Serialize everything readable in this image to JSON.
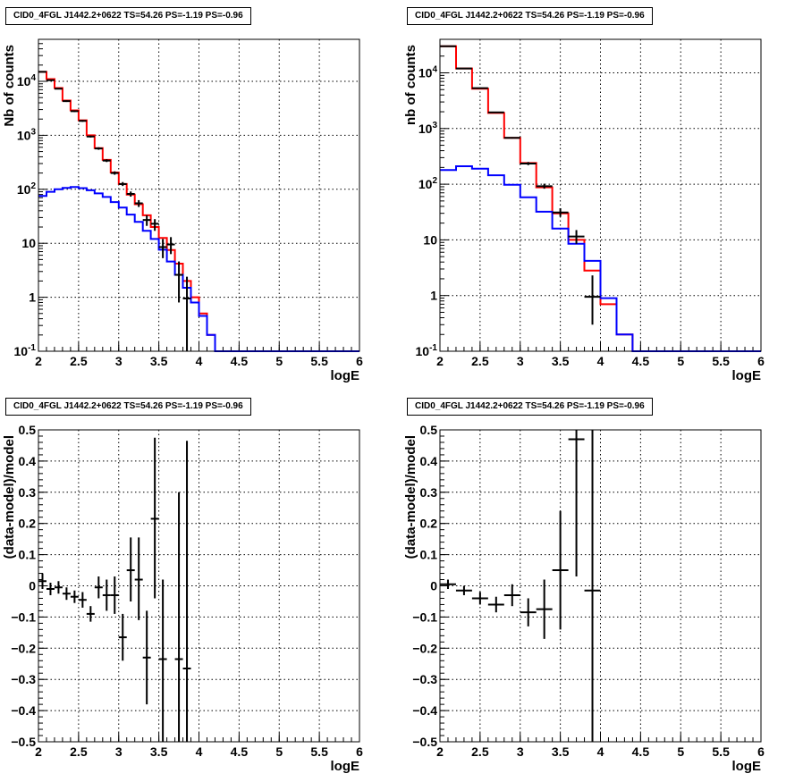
{
  "chart_data": [
    {
      "type": "line",
      "title": "CID0_4FGL J1442.2+0622 TS=54.26 PS=-1.19 PS=-0.96",
      "xlabel": "logE",
      "ylabel": "Nb of counts",
      "xlim": [
        2,
        6
      ],
      "ylim": [
        0.1,
        60000
      ],
      "yscale": "log",
      "x_ticks": [
        "2",
        "2.5",
        "3",
        "3.5",
        "4",
        "4.5",
        "5",
        "5.5",
        "6"
      ],
      "y_ticks": [
        "10^-1",
        "1",
        "10",
        "10^2",
        "10^3",
        "10^4"
      ],
      "grid": true,
      "bin_edges": [
        2.0,
        2.1,
        2.2,
        2.3,
        2.4,
        2.5,
        2.6,
        2.7,
        2.8,
        2.9,
        3.0,
        3.1,
        3.2,
        3.3,
        3.4,
        3.5,
        3.6,
        3.7,
        3.8,
        3.9,
        4.0,
        4.1,
        4.2,
        4.3,
        4.4,
        4.5,
        4.6,
        4.7,
        4.8,
        4.9,
        5.0,
        5.1,
        5.2,
        5.3,
        5.4,
        5.5,
        5.6,
        5.7,
        5.8,
        5.9,
        6.0
      ],
      "series": [
        {
          "color": "#ff0000",
          "kind": "step",
          "values": [
            15000,
            11000,
            7500,
            4400,
            2900,
            1900,
            1000,
            580,
            350,
            205,
            125,
            80,
            53,
            33,
            20,
            12.5,
            7.5,
            4.2,
            2.0,
            1.0,
            0.5,
            0.2,
            0.09,
            0.09,
            0.09,
            0.09,
            0.09,
            0.09,
            0.09,
            0.09,
            0.09,
            0.09,
            0.09,
            0.09,
            0.09,
            0.09,
            0.09,
            0.09,
            0.09,
            0.09
          ]
        },
        {
          "color": "#0000ff",
          "kind": "step",
          "values": [
            75,
            90,
            100,
            106,
            110,
            105,
            96,
            84,
            72,
            58,
            46,
            34,
            25,
            17,
            12,
            7.6,
            4.6,
            2.6,
            1.5,
            0.8,
            0.45,
            0.2,
            0.1,
            0.1,
            0.1,
            0.1,
            0.1,
            0.1,
            0.1,
            0.1,
            0.1,
            0.1,
            0.1,
            0.1,
            0.1,
            0.1,
            0.1,
            0.1,
            0.1,
            0.1
          ]
        },
        {
          "color": "#000000",
          "kind": "points",
          "x": [
            2.05,
            2.15,
            2.25,
            2.35,
            2.45,
            2.55,
            2.65,
            2.75,
            2.85,
            2.95,
            3.05,
            3.15,
            3.25,
            3.35,
            3.45,
            3.55,
            3.65,
            3.75,
            3.85
          ],
          "y": [
            15000,
            10500,
            7300,
            4300,
            2800,
            1850,
            950,
            570,
            340,
            200,
            125,
            82,
            55,
            27,
            23,
            8.5,
            9.5,
            2.6,
            0.95
          ],
          "ylo": [
            14800,
            10300,
            7100,
            4150,
            2700,
            1780,
            910,
            540,
            320,
            186,
            115,
            73,
            47,
            21,
            17,
            5.3,
            6.3,
            0.8,
            0.02
          ],
          "yhi": [
            15200,
            10700,
            7500,
            4450,
            2900,
            1920,
            990,
            600,
            360,
            215,
            136,
            91,
            63,
            33,
            28,
            12,
            13,
            4.6,
            2.4
          ]
        }
      ]
    },
    {
      "type": "line",
      "title": "CID0_4FGL J1442.2+0622 TS=54.26 PS=-1.19 PS=-0.96",
      "xlabel": "logE",
      "ylabel": "nb of counts",
      "xlim": [
        2,
        6
      ],
      "ylim": [
        0.1,
        40000
      ],
      "yscale": "log",
      "x_ticks": [
        "2",
        "2.5",
        "3",
        "3.5",
        "4",
        "4.5",
        "5",
        "5.5",
        "6"
      ],
      "y_ticks": [
        "10^-1",
        "1",
        "10",
        "10^2",
        "10^3",
        "10^4"
      ],
      "grid": true,
      "bin_edges": [
        2.0,
        2.2,
        2.4,
        2.6,
        2.8,
        3.0,
        3.2,
        3.4,
        3.6,
        3.8,
        4.0,
        4.2,
        4.4,
        4.6,
        4.8,
        5.0,
        5.2,
        5.4,
        5.6,
        5.8,
        6.0
      ],
      "series": [
        {
          "color": "#ff0000",
          "kind": "step",
          "values": [
            30000,
            12000,
            5200,
            1900,
            680,
            240,
            88,
            30,
            10,
            2.8,
            0.7,
            0.2,
            0.09,
            0.09,
            0.09,
            0.09,
            0.09,
            0.09,
            0.09,
            0.09
          ]
        },
        {
          "color": "#0000ff",
          "kind": "step",
          "values": [
            180,
            210,
            190,
            145,
            98,
            58,
            32,
            16,
            8.5,
            4.2,
            0.9,
            0.2,
            0.1,
            0.1,
            0.1,
            0.1,
            0.1,
            0.1,
            0.1,
            0.1
          ]
        },
        {
          "color": "#000000",
          "kind": "points",
          "x": [
            2.1,
            2.3,
            2.5,
            2.7,
            2.9,
            3.1,
            3.3,
            3.5,
            3.7,
            3.9
          ],
          "y": [
            30000,
            12000,
            5300,
            1950,
            680,
            235,
            92,
            31,
            11.5,
            0.95
          ],
          "ylo": [
            29700,
            11800,
            5200,
            1900,
            660,
            220,
            83,
            26,
            8.5,
            0.3
          ],
          "yhi": [
            30300,
            12200,
            5400,
            2000,
            700,
            250,
            102,
            37,
            15,
            2.3
          ]
        }
      ]
    },
    {
      "type": "scatter",
      "title": "CID0_4FGL J1442.2+0622 TS=54.26 PS=-1.19 PS=-0.96",
      "xlabel": "logE",
      "ylabel": "(data-model)/model",
      "xlim": [
        2,
        6
      ],
      "ylim": [
        -0.5,
        0.5
      ],
      "x_ticks": [
        "2",
        "2.5",
        "3",
        "3.5",
        "4",
        "4.5",
        "5",
        "5.5",
        "6"
      ],
      "y_ticks": [
        "-0.5",
        "-0.4",
        "-0.3",
        "-0.2",
        "-0.1",
        "0",
        "0.1",
        "0.2",
        "0.3",
        "0.4",
        "0.5"
      ],
      "grid": true,
      "series": [
        {
          "color": "#000000",
          "kind": "points",
          "xerr": 0.05,
          "x": [
            2.05,
            2.15,
            2.25,
            2.35,
            2.45,
            2.55,
            2.65,
            2.75,
            2.85,
            2.95,
            3.05,
            3.15,
            3.25,
            3.35,
            3.45,
            3.55,
            3.75,
            3.85
          ],
          "y": [
            0.015,
            -0.01,
            -0.005,
            -0.025,
            -0.035,
            -0.045,
            -0.09,
            -0.005,
            -0.03,
            -0.03,
            -0.165,
            0.05,
            0.02,
            -0.23,
            0.215,
            -0.235,
            -0.235,
            -0.265
          ],
          "ylo": [
            -0.01,
            -0.03,
            -0.025,
            -0.045,
            -0.055,
            -0.07,
            -0.115,
            -0.04,
            -0.08,
            -0.09,
            -0.24,
            -0.05,
            -0.11,
            -0.38,
            -0.04,
            -0.5,
            -0.5,
            -0.5
          ],
          "yhi": [
            0.04,
            0.01,
            0.015,
            -0.005,
            -0.015,
            -0.02,
            -0.065,
            0.03,
            0.02,
            0.03,
            -0.09,
            0.155,
            0.155,
            -0.08,
            0.475,
            0.02,
            0.3,
            0.465
          ]
        }
      ]
    },
    {
      "type": "scatter",
      "title": "CID0_4FGL J1442.2+0622 TS=54.26 PS=-1.19 PS=-0.96",
      "xlabel": "logE",
      "ylabel": "(data-model)/model",
      "xlim": [
        2,
        6
      ],
      "ylim": [
        -0.5,
        0.5
      ],
      "x_ticks": [
        "2",
        "2.5",
        "3",
        "3.5",
        "4",
        "4.5",
        "5",
        "5.5",
        "6"
      ],
      "y_ticks": [
        "-0.5",
        "-0.4",
        "-0.3",
        "-0.2",
        "-0.1",
        "0",
        "0.1",
        "0.2",
        "0.3",
        "0.4",
        "0.5"
      ],
      "grid": true,
      "series": [
        {
          "color": "#000000",
          "kind": "points",
          "xerr": 0.1,
          "x": [
            2.1,
            2.3,
            2.5,
            2.7,
            2.9,
            3.1,
            3.3,
            3.5,
            3.7,
            3.9
          ],
          "y": [
            0.005,
            -0.015,
            -0.04,
            -0.06,
            -0.03,
            -0.085,
            -0.075,
            0.05,
            0.47,
            -0.015
          ],
          "ylo": [
            -0.01,
            -0.03,
            -0.06,
            -0.085,
            -0.065,
            -0.13,
            -0.17,
            -0.14,
            0.03,
            -0.5
          ],
          "yhi": [
            0.02,
            0.0,
            -0.02,
            -0.035,
            0.005,
            -0.04,
            0.02,
            0.24,
            0.5,
            0.5
          ]
        }
      ]
    }
  ]
}
